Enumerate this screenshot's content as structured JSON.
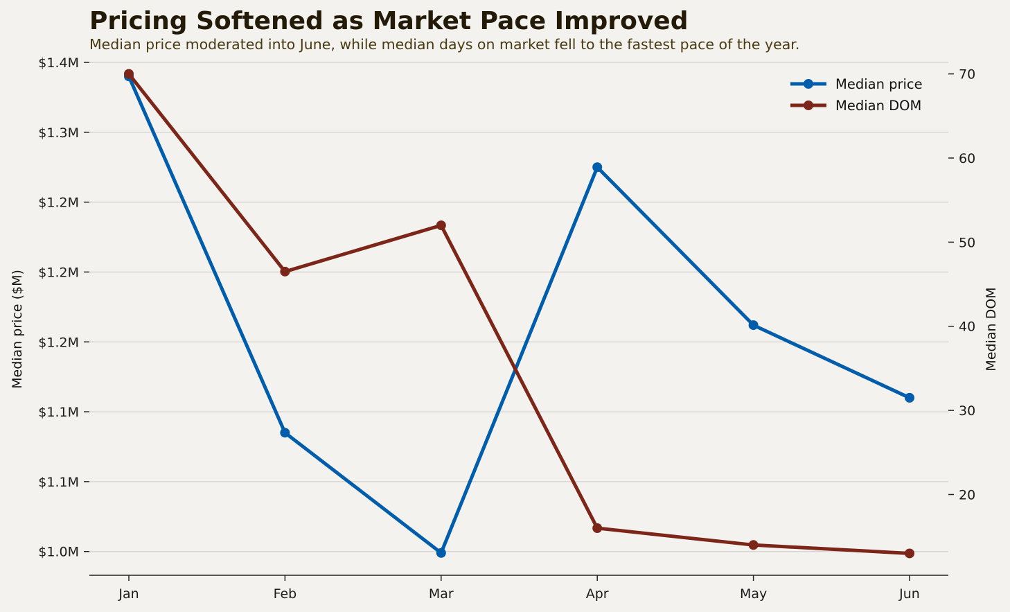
{
  "chart_data": {
    "type": "line",
    "title": "Pricing Softened as Market Pace Improved",
    "subtitle": "Median price moderated into June, while median days on market fell to the fastest pace of the year.",
    "categories": [
      "Jan",
      "Feb",
      "Mar",
      "Apr",
      "May",
      "Jun"
    ],
    "y_left": {
      "label": "Median price ($M)",
      "ticks": [
        1.0,
        1.05,
        1.1,
        1.15,
        1.2,
        1.25,
        1.3,
        1.35
      ],
      "tick_labels": [
        "$1.0M",
        "$1.1M",
        "$1.1M",
        "$1.2M",
        "$1.2M",
        "$1.2M",
        "$1.3M",
        "$1.4M"
      ],
      "ylim": [
        0.983,
        1.352
      ]
    },
    "y_right": {
      "label": "Median DOM",
      "ticks": [
        20,
        30,
        40,
        50,
        60,
        70
      ],
      "tick_labels": [
        "20",
        "30",
        "40",
        "50",
        "60",
        "70"
      ],
      "ylim": [
        10.4,
        71.7
      ]
    },
    "series": [
      {
        "name": "Median price",
        "axis": "left",
        "color": "#005dab",
        "values": [
          1.34,
          1.085,
          0.999,
          1.275,
          1.162,
          1.11
        ]
      },
      {
        "name": "Median DOM",
        "axis": "right",
        "color": "#7b2618",
        "values": [
          70,
          46.5,
          52,
          16,
          14,
          13
        ]
      }
    ],
    "grid": "horizontal",
    "legend_position": "top-right"
  }
}
